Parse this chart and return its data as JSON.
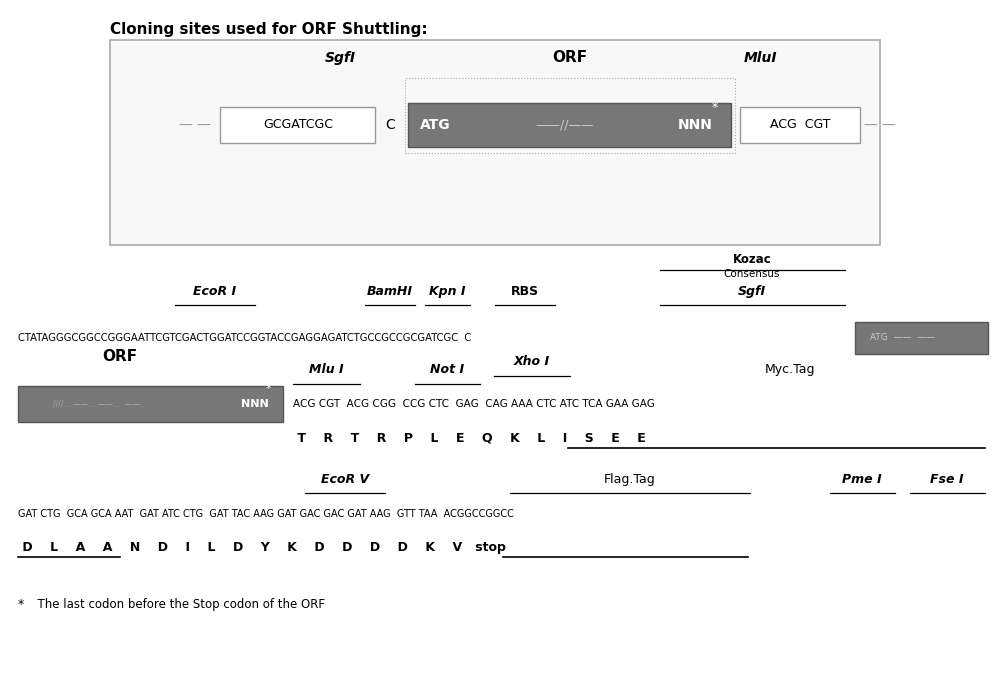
{
  "title": "Cloning sites used for ORF Shuttling:",
  "bg_color": "#ffffff",
  "orf_dark": "#777777",
  "section1": {
    "sgf_label": "SgfI",
    "orf_label": "ORF",
    "mlu_label": "MluI",
    "sgf_seq": "GCGATCGC",
    "c_letter": "C",
    "atg": "ATG",
    "nnn": "NNN",
    "mlu_seq": "ACG  CGT"
  },
  "section2": {
    "line1_seq": "CTATAGGGCGGCCGGGAATTCGTCGACTGGATCCGGTACCGAGGAGATCTGCCGCCGCGATCGC  C",
    "ecorI_label": "EcoR I",
    "bamhI_label": "BamHI",
    "kpnI_label": "Kpn I",
    "rbs_label": "RBS",
    "kozac_label": "Kozac",
    "kozac_sub": "Consensus",
    "sgfI_label": "SgfI",
    "atg_box_text": "ATG  ----  ----"
  },
  "section3": {
    "orf_label": "ORF",
    "mluI_label": "Mlu I",
    "notI_label": "Not I",
    "xhoI_label": "Xho I",
    "myctag_label": "Myc.Tag",
    "codon_seq": "ACG CGT  ACG CGG  CCG CTC  GAG  CAG AAA CTC ATC TCA GAA GAG",
    "aa_seq": "T    R    T    R    P    L    E    Q    K    L    I    S    E    E"
  },
  "section4": {
    "ecorV_label": "EcoR V",
    "flagtag_label": "Flag.Tag",
    "pmeI_label": "Pme I",
    "fseI_label": "Fse I",
    "codon_seq": "GAT CTG GCA GCA AAT  GAT ATC CTG  GAT TAC AAG GAT GAC GAC GAT AAG  GTT TAA  ACGGCCGGCC",
    "aa_seq": "D    L    A    A    N    D    I    L    D    Y    K    D    D    D    D    K    V   stop"
  },
  "footnote": "  The last codon before the Stop codon of the ORF"
}
